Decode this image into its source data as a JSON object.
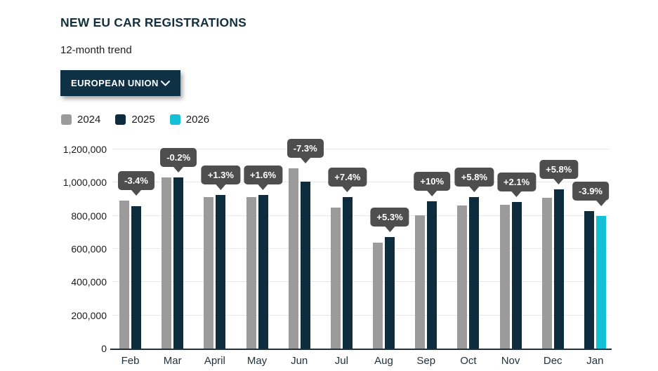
{
  "header": {
    "title": "NEW EU CAR REGISTRATIONS",
    "subtitle": "12-month trend",
    "region_selector": {
      "label": "EUROPEAN UNION",
      "icon": "chevron-down-icon"
    }
  },
  "legend": {
    "items": [
      {
        "label": "2024",
        "color": "#9b9b9b"
      },
      {
        "label": "2025",
        "color": "#0d2d3f"
      },
      {
        "label": "2026",
        "color": "#14c0d6"
      }
    ]
  },
  "colors": {
    "accent_navy": "#0e3146",
    "badge_bg": "#4e4e4e",
    "badge_text": "#ffffff",
    "gridline": "#e8e8e8",
    "axis_line": "#24303a"
  },
  "chart_data": {
    "type": "bar",
    "title": "NEW EU CAR REGISTRATIONS",
    "subtitle": "12-month trend",
    "xlabel": "",
    "ylabel": "",
    "ylim": [
      0,
      1200000
    ],
    "ytick_step": 200000,
    "ytick_labels": [
      "0",
      "200,000",
      "400,000",
      "600,000",
      "800,000",
      "1,000,000",
      "1,200,000"
    ],
    "grid": true,
    "legend_position": "top-left",
    "categories": [
      "Feb",
      "Mar",
      "April",
      "May",
      "Jun",
      "Jul",
      "Aug",
      "Sep",
      "Oct",
      "Nov",
      "Dec",
      "Jan"
    ],
    "series_colors": {
      "2024": "#9b9b9b",
      "2025": "#0d2d3f",
      "2026": "#14c0d6"
    },
    "groups": [
      {
        "month": "Feb",
        "change": "-3.4%",
        "bars": [
          {
            "series": "2024",
            "value": 890000
          },
          {
            "series": "2025",
            "value": 860000
          }
        ]
      },
      {
        "month": "Mar",
        "change": "-0.2%",
        "bars": [
          {
            "series": "2024",
            "value": 1032000
          },
          {
            "series": "2025",
            "value": 1030000
          }
        ]
      },
      {
        "month": "April",
        "change": "+1.3%",
        "bars": [
          {
            "series": "2024",
            "value": 913000
          },
          {
            "series": "2025",
            "value": 925000
          }
        ]
      },
      {
        "month": "May",
        "change": "+1.6%",
        "bars": [
          {
            "series": "2024",
            "value": 911000
          },
          {
            "series": "2025",
            "value": 926000
          }
        ]
      },
      {
        "month": "Jun",
        "change": "-7.3%",
        "bars": [
          {
            "series": "2024",
            "value": 1085000
          },
          {
            "series": "2025",
            "value": 1006000
          }
        ]
      },
      {
        "month": "Jul",
        "change": "+7.4%",
        "bars": [
          {
            "series": "2024",
            "value": 850000
          },
          {
            "series": "2025",
            "value": 913000
          }
        ]
      },
      {
        "month": "Aug",
        "change": "+5.3%",
        "bars": [
          {
            "series": "2024",
            "value": 640000
          },
          {
            "series": "2025",
            "value": 674000
          }
        ]
      },
      {
        "month": "Sep",
        "change": "+10%",
        "bars": [
          {
            "series": "2024",
            "value": 805000
          },
          {
            "series": "2025",
            "value": 886000
          }
        ]
      },
      {
        "month": "Oct",
        "change": "+5.8%",
        "bars": [
          {
            "series": "2024",
            "value": 864000
          },
          {
            "series": "2025",
            "value": 914000
          }
        ]
      },
      {
        "month": "Nov",
        "change": "+2.1%",
        "bars": [
          {
            "series": "2024",
            "value": 866000
          },
          {
            "series": "2025",
            "value": 884000
          }
        ]
      },
      {
        "month": "Dec",
        "change": "+5.8%",
        "bars": [
          {
            "series": "2024",
            "value": 908000
          },
          {
            "series": "2025",
            "value": 961000
          }
        ]
      },
      {
        "month": "Jan",
        "change": "-3.9%",
        "bars": [
          {
            "series": "2025",
            "value": 830000
          },
          {
            "series": "2026",
            "value": 798000
          }
        ]
      }
    ]
  }
}
